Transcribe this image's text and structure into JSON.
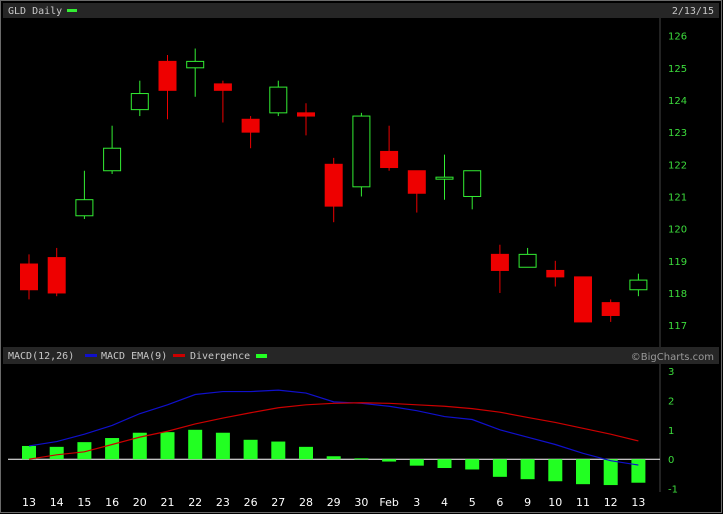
{
  "header": {
    "symbol_label": "GLD Daily",
    "date": "2/13/15"
  },
  "macd_header": {
    "macd_label": "MACD(12,26)",
    "ema_label": "MACD EMA(9)",
    "divergence_label": "Divergence",
    "watermark": "©BigCharts.com"
  },
  "colors": {
    "up": "#33ee33",
    "down": "#ee0000",
    "macd_line": "#1010cc",
    "ema_line": "#cc0000",
    "histogram": "#22ff22",
    "axis_text": "#3cdc3c",
    "header_bar": "#2a2a2a"
  },
  "chart_data": [
    {
      "type": "candlestick",
      "title": "GLD Daily",
      "x": [
        "13",
        "14",
        "15",
        "16",
        "20",
        "21",
        "22",
        "23",
        "26",
        "27",
        "28",
        "29",
        "30",
        "Feb",
        "3",
        "4",
        "5",
        "6",
        "9",
        "10",
        "11",
        "12",
        "13"
      ],
      "open": [
        118.9,
        119.1,
        120.4,
        121.8,
        123.7,
        125.2,
        125.0,
        124.5,
        123.4,
        123.6,
        123.6,
        122.0,
        121.3,
        122.4,
        121.8,
        121.6,
        121.0,
        119.2,
        118.8,
        118.7,
        118.5,
        117.7,
        118.1
      ],
      "high": [
        119.2,
        119.4,
        121.8,
        123.2,
        124.6,
        125.4,
        125.6,
        124.6,
        123.5,
        124.6,
        123.9,
        122.2,
        123.6,
        123.2,
        121.8,
        122.3,
        121.8,
        119.5,
        119.4,
        119.0,
        118.5,
        117.8,
        118.6
      ],
      "low": [
        117.8,
        117.9,
        120.3,
        121.7,
        123.5,
        123.4,
        124.1,
        123.3,
        122.5,
        123.5,
        122.9,
        120.2,
        121.0,
        121.8,
        120.5,
        120.9,
        120.6,
        118.0,
        118.8,
        118.2,
        117.1,
        117.1,
        117.9
      ],
      "close": [
        118.1,
        118.0,
        120.9,
        122.5,
        124.2,
        124.3,
        125.2,
        124.3,
        123.0,
        124.4,
        123.5,
        120.7,
        123.5,
        121.9,
        121.1,
        121.6,
        121.8,
        118.7,
        119.2,
        118.5,
        117.1,
        117.3,
        118.4
      ],
      "ylim": [
        116.6,
        126.3
      ],
      "yticks": [
        117,
        118,
        119,
        120,
        121,
        122,
        123,
        124,
        125,
        126
      ]
    },
    {
      "type": "macd",
      "x": [
        "13",
        "14",
        "15",
        "16",
        "20",
        "21",
        "22",
        "23",
        "26",
        "27",
        "28",
        "29",
        "30",
        "Feb",
        "3",
        "4",
        "5",
        "6",
        "9",
        "10",
        "11",
        "12",
        "13"
      ],
      "series": [
        {
          "name": "MACD(12,26)",
          "values": [
            0.45,
            0.6,
            0.85,
            1.15,
            1.55,
            1.85,
            2.2,
            2.3,
            2.3,
            2.35,
            2.25,
            1.95,
            1.9,
            1.8,
            1.65,
            1.45,
            1.35,
            1.0,
            0.75,
            0.5,
            0.2,
            -0.05,
            -0.2
          ]
        },
        {
          "name": "MACD EMA(9)",
          "values": [
            0.0,
            0.15,
            0.25,
            0.5,
            0.75,
            0.95,
            1.2,
            1.4,
            1.58,
            1.75,
            1.85,
            1.9,
            1.92,
            1.9,
            1.85,
            1.8,
            1.72,
            1.6,
            1.42,
            1.25,
            1.05,
            0.85,
            0.62
          ]
        },
        {
          "name": "Divergence",
          "type": "bar",
          "values": [
            0.45,
            0.42,
            0.58,
            0.72,
            0.9,
            0.92,
            1.0,
            0.9,
            0.66,
            0.6,
            0.42,
            0.1,
            0.03,
            -0.08,
            -0.22,
            -0.3,
            -0.35,
            -0.6,
            -0.68,
            -0.75,
            -0.85,
            -0.88,
            -0.8
          ]
        }
      ],
      "ylim": [
        -1.15,
        3.0
      ],
      "yticks": [
        3,
        2,
        1,
        0,
        -1
      ]
    }
  ]
}
